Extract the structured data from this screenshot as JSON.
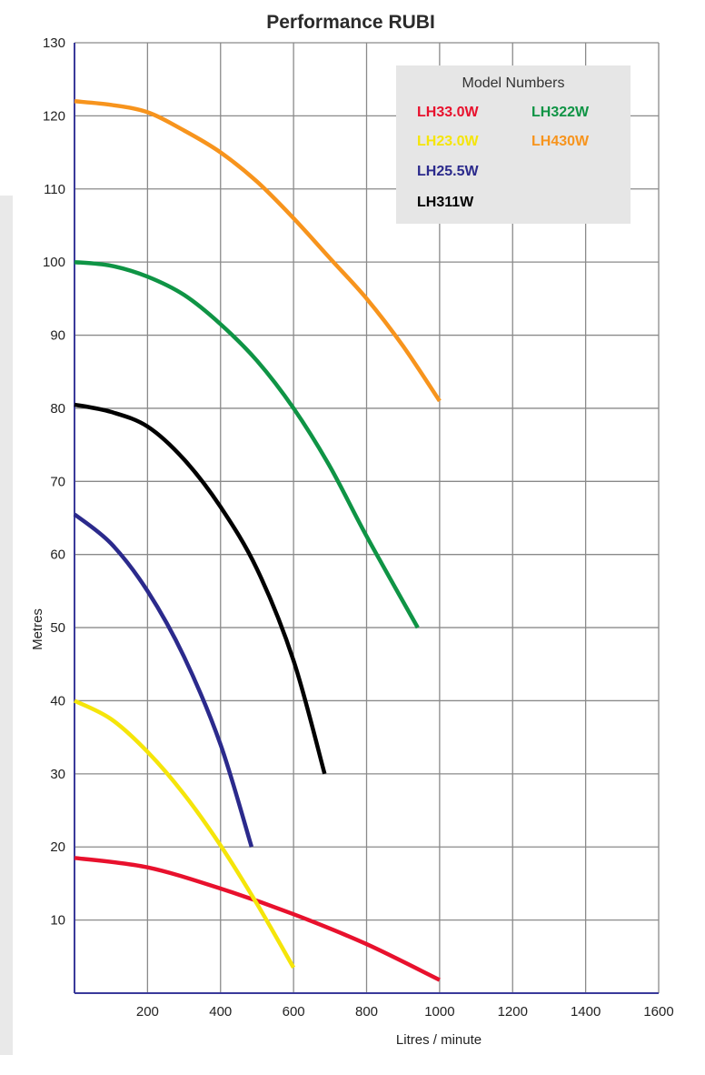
{
  "chart_data": {
    "type": "line",
    "title": "Performance RUBI",
    "xlabel": "Litres / minute",
    "ylabel": "Metres",
    "xlim": [
      0,
      1600
    ],
    "ylim": [
      0,
      130
    ],
    "x_ticks": [
      200,
      400,
      600,
      800,
      1000,
      1200,
      1400,
      1600
    ],
    "y_ticks": [
      10,
      20,
      30,
      40,
      50,
      60,
      70,
      80,
      90,
      100,
      110,
      120,
      130
    ],
    "grid": true,
    "legend": {
      "title": "Model Numbers",
      "placement": "top-right",
      "background": "#e6e6e6"
    },
    "series": [
      {
        "name": "LH33.0W",
        "color": "#e8112d",
        "x": [
          0,
          200,
          400,
          600,
          800,
          1000
        ],
        "y": [
          18.5,
          17.2,
          14.3,
          10.8,
          6.7,
          1.8
        ]
      },
      {
        "name": "LH23.0W",
        "color": "#f5e50a",
        "x": [
          0,
          100,
          200,
          300,
          400,
          500,
          600
        ],
        "y": [
          40,
          37.5,
          33,
          27.2,
          20.2,
          12.2,
          3.5
        ]
      },
      {
        "name": "LH25.5W",
        "color": "#2b2a8c",
        "x": [
          0,
          100,
          200,
          300,
          400,
          485
        ],
        "y": [
          65.5,
          61.5,
          55,
          46,
          34,
          20
        ]
      },
      {
        "name": "LH311W",
        "color": "#000000",
        "x": [
          0,
          100,
          200,
          300,
          400,
          500,
          600,
          685
        ],
        "y": [
          80.5,
          79.5,
          77.5,
          73,
          66.5,
          58,
          45.5,
          30
        ]
      },
      {
        "name": "LH322W",
        "color": "#0f9445",
        "x": [
          0,
          100,
          200,
          300,
          400,
          500,
          600,
          700,
          800,
          940
        ],
        "y": [
          100,
          99.5,
          98,
          95.5,
          91.5,
          86.5,
          80,
          72,
          62.5,
          50
        ]
      },
      {
        "name": "LH430W",
        "color": "#f7941d",
        "x": [
          0,
          100,
          200,
          300,
          400,
          500,
          600,
          700,
          800,
          900,
          1000
        ],
        "y": [
          122,
          121.5,
          120.5,
          118,
          115,
          111,
          106,
          100.5,
          95,
          88.5,
          81
        ]
      }
    ]
  }
}
